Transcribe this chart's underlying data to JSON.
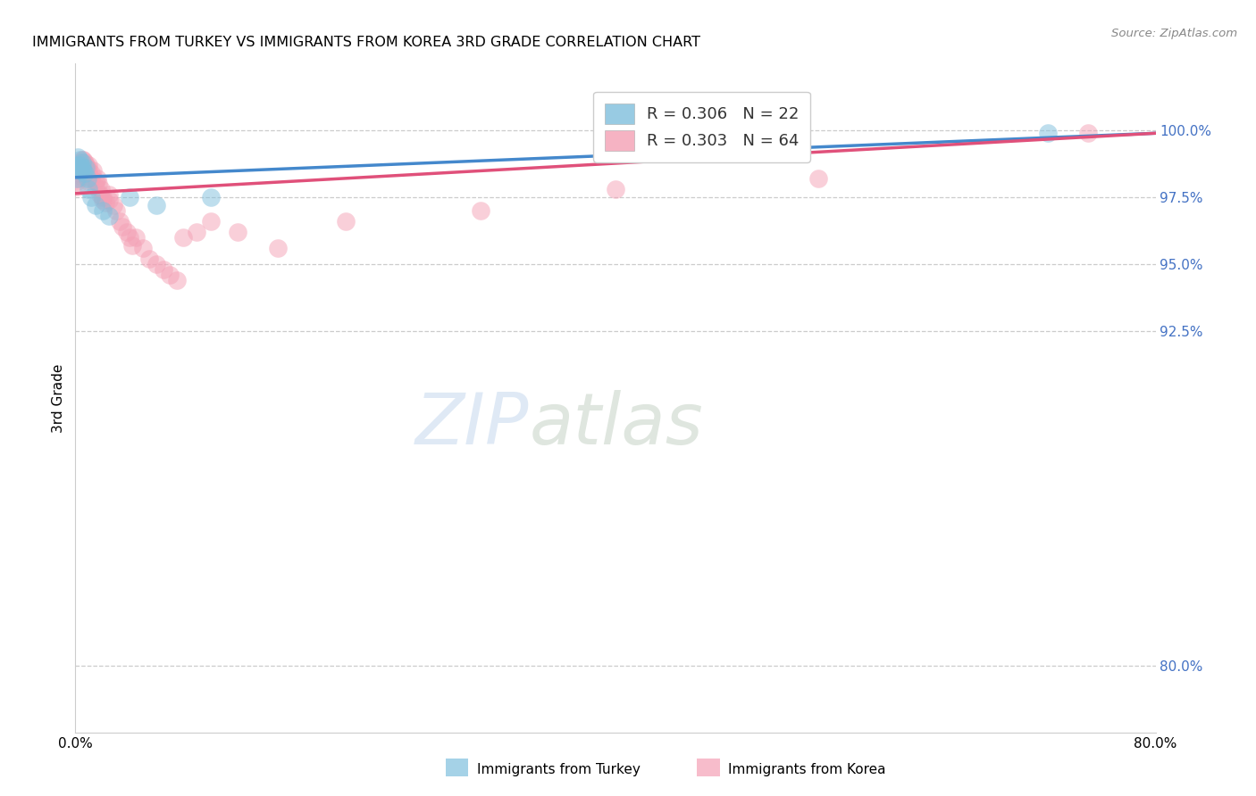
{
  "title": "IMMIGRANTS FROM TURKEY VS IMMIGRANTS FROM KOREA 3RD GRADE CORRELATION CHART",
  "source": "Source: ZipAtlas.com",
  "ylabel": "3rd Grade",
  "ylabel_right_ticks": [
    "100.0%",
    "97.5%",
    "95.0%",
    "92.5%",
    "80.0%"
  ],
  "ylabel_right_vals": [
    1.0,
    0.975,
    0.95,
    0.925,
    0.8
  ],
  "x_min": 0.0,
  "x_max": 0.8,
  "y_min": 0.775,
  "y_max": 1.025,
  "turkey_color": "#7fbfdd",
  "korea_color": "#f4a0b5",
  "turkey_line_color": "#4488cc",
  "korea_line_color": "#e0507a",
  "turkey_R": 0.306,
  "turkey_N": 22,
  "korea_R": 0.303,
  "korea_N": 64,
  "legend_label_turkey": "Immigrants from Turkey",
  "legend_label_korea": "Immigrants from Korea",
  "watermark_zip": "ZIP",
  "watermark_atlas": "atlas",
  "turkey_x": [
    0.001,
    0.002,
    0.002,
    0.003,
    0.003,
    0.004,
    0.004,
    0.005,
    0.005,
    0.006,
    0.007,
    0.008,
    0.009,
    0.01,
    0.012,
    0.015,
    0.02,
    0.025,
    0.04,
    0.06,
    0.1,
    0.72
  ],
  "turkey_y": [
    0.982,
    0.99,
    0.987,
    0.989,
    0.986,
    0.987,
    0.985,
    0.988,
    0.986,
    0.985,
    0.984,
    0.986,
    0.982,
    0.978,
    0.975,
    0.972,
    0.97,
    0.968,
    0.975,
    0.972,
    0.975,
    0.999
  ],
  "korea_x": [
    0.001,
    0.001,
    0.002,
    0.002,
    0.003,
    0.003,
    0.003,
    0.004,
    0.004,
    0.004,
    0.005,
    0.005,
    0.005,
    0.006,
    0.006,
    0.006,
    0.007,
    0.007,
    0.008,
    0.008,
    0.009,
    0.009,
    0.01,
    0.01,
    0.01,
    0.01,
    0.012,
    0.012,
    0.013,
    0.015,
    0.015,
    0.016,
    0.017,
    0.018,
    0.019,
    0.02,
    0.02,
    0.022,
    0.025,
    0.025,
    0.028,
    0.03,
    0.033,
    0.035,
    0.038,
    0.04,
    0.042,
    0.045,
    0.05,
    0.055,
    0.06,
    0.065,
    0.07,
    0.075,
    0.08,
    0.09,
    0.1,
    0.12,
    0.15,
    0.2,
    0.3,
    0.4,
    0.55,
    0.75
  ],
  "korea_y": [
    0.981,
    0.979,
    0.984,
    0.982,
    0.987,
    0.985,
    0.983,
    0.988,
    0.986,
    0.984,
    0.989,
    0.987,
    0.985,
    0.989,
    0.987,
    0.985,
    0.988,
    0.986,
    0.987,
    0.985,
    0.986,
    0.984,
    0.987,
    0.985,
    0.983,
    0.981,
    0.984,
    0.982,
    0.985,
    0.981,
    0.979,
    0.982,
    0.98,
    0.976,
    0.978,
    0.975,
    0.974,
    0.973,
    0.976,
    0.974,
    0.972,
    0.97,
    0.966,
    0.964,
    0.962,
    0.96,
    0.957,
    0.96,
    0.956,
    0.952,
    0.95,
    0.948,
    0.946,
    0.944,
    0.96,
    0.962,
    0.966,
    0.962,
    0.956,
    0.966,
    0.97,
    0.978,
    0.982,
    0.999
  ]
}
